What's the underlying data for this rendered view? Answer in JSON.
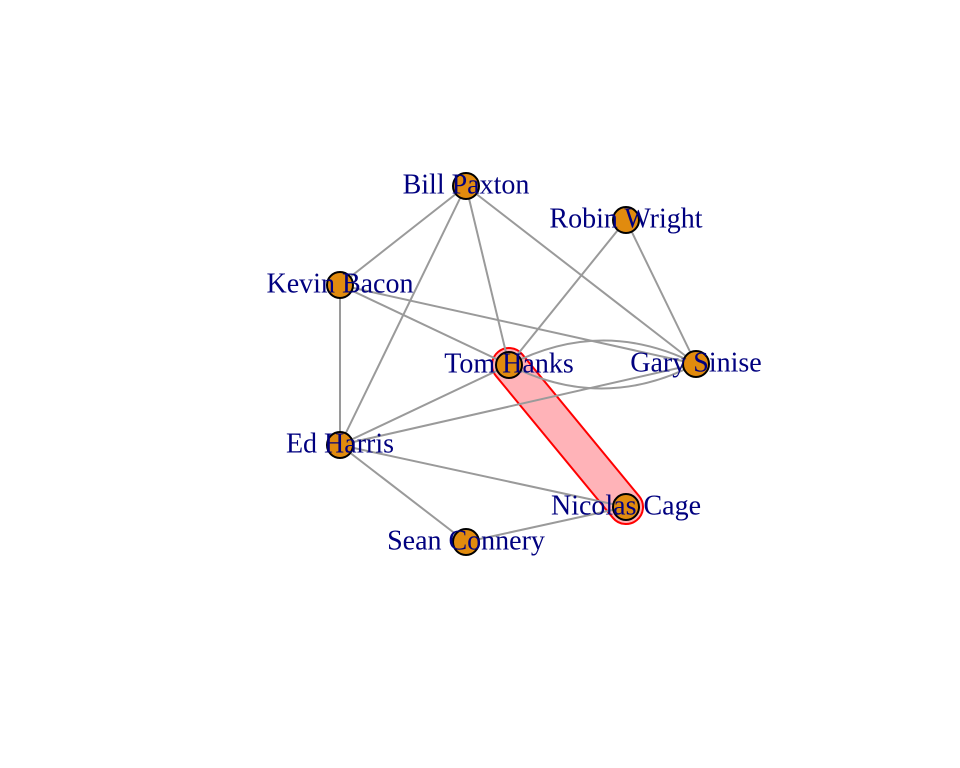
{
  "colors": {
    "node_fill": "#E18B0E",
    "node_stroke": "#000000",
    "edge": "#9A9A9A",
    "label": "#00007F",
    "highlight_fill": "#FFB3B8",
    "highlight_stroke": "#FF0000"
  },
  "nodes": [
    {
      "id": "bill_paxton",
      "label": "Bill Paxton"
    },
    {
      "id": "robin_wright",
      "label": "Robin Wright"
    },
    {
      "id": "kevin_bacon",
      "label": "Kevin Bacon"
    },
    {
      "id": "tom_hanks",
      "label": "Tom Hanks"
    },
    {
      "id": "gary_sinise",
      "label": "Gary Sinise"
    },
    {
      "id": "ed_harris",
      "label": "Ed Harris"
    },
    {
      "id": "nicolas_cage",
      "label": "Nicolas Cage"
    },
    {
      "id": "sean_connery",
      "label": "Sean Connery"
    }
  ],
  "edges": [
    [
      "bill_paxton",
      "kevin_bacon"
    ],
    [
      "bill_paxton",
      "ed_harris"
    ],
    [
      "bill_paxton",
      "tom_hanks"
    ],
    [
      "bill_paxton",
      "gary_sinise"
    ],
    [
      "robin_wright",
      "tom_hanks"
    ],
    [
      "robin_wright",
      "gary_sinise"
    ],
    [
      "kevin_bacon",
      "ed_harris"
    ],
    [
      "kevin_bacon",
      "tom_hanks"
    ],
    [
      "kevin_bacon",
      "gary_sinise"
    ],
    [
      "tom_hanks",
      "gary_sinise"
    ],
    [
      "tom_hanks",
      "gary_sinise"
    ],
    [
      "ed_harris",
      "tom_hanks"
    ],
    [
      "ed_harris",
      "gary_sinise"
    ],
    [
      "ed_harris",
      "nicolas_cage"
    ],
    [
      "ed_harris",
      "sean_connery"
    ],
    [
      "sean_connery",
      "nicolas_cage"
    ]
  ],
  "highlight_group": [
    "tom_hanks",
    "nicolas_cage"
  ]
}
